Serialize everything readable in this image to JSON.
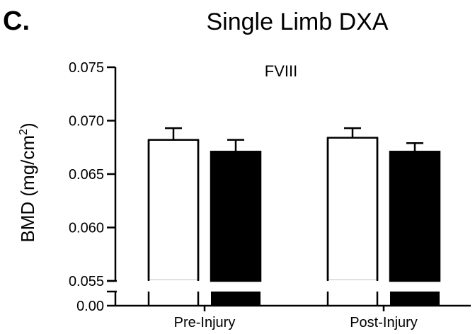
{
  "panel_label": "C.",
  "chart_data": {
    "type": "bar",
    "title": "Single Limb DXA",
    "subtitle": "FVIII",
    "xlabel": "",
    "ylabel": "BMD (mg/cm",
    "ylabel_superscript": "2",
    "ylabel_close": ")",
    "categories": [
      "Pre-Injury",
      "Post-Injury"
    ],
    "series": [
      {
        "fill": "#ffffff",
        "values": [
          0.0682,
          0.0684
        ],
        "errors": [
          0.0011,
          0.0009
        ]
      },
      {
        "fill": "#000000",
        "values": [
          0.0671,
          0.0671
        ],
        "errors": [
          0.0011,
          0.0008
        ]
      }
    ],
    "y_main": {
      "min": 0.055,
      "max": 0.075,
      "ticks": [
        0.055,
        0.06,
        0.065,
        0.07,
        0.075
      ],
      "tick_labels": [
        "0.055",
        "0.060",
        "0.065",
        "0.070",
        "0.075"
      ]
    },
    "y_lower": {
      "ticks": [
        0.0
      ],
      "tick_labels": [
        "0.00"
      ]
    },
    "axis_break": true,
    "grid": false
  }
}
